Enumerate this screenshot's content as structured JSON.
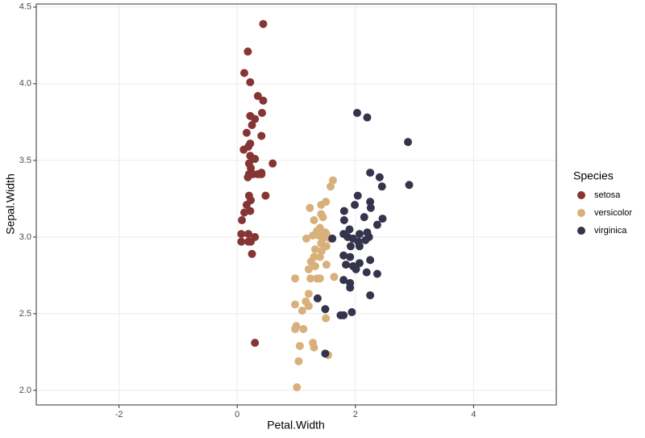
{
  "chart_data": {
    "type": "scatter",
    "x_label": "Petal.Width",
    "y_label": "Sepal.Width",
    "legend_title": "Species",
    "legend_position": "right",
    "grid": true,
    "xlim": [
      -3.4,
      5.4
    ],
    "ylim": [
      1.905,
      4.52
    ],
    "xticks": [
      -2,
      0,
      2,
      4
    ],
    "yticks": [
      {
        "value": 2,
        "label": "2.0"
      },
      {
        "value": 2.5,
        "label": "2.5"
      },
      {
        "value": 3,
        "label": "3.0"
      },
      {
        "value": 3.5,
        "label": "3.5"
      },
      {
        "value": 4,
        "label": "4.0"
      },
      {
        "value": 4.5,
        "label": "4.5"
      }
    ],
    "series": [
      {
        "name": "setosa",
        "color": "#853634",
        "x": [
          0.44,
          0.18,
          0.12,
          0.22,
          0.35,
          0.44,
          0.42,
          0.22,
          0.3,
          0.25,
          0.16,
          0.41,
          0.22,
          0.19,
          0.11,
          0.22,
          0.26,
          0.3,
          0.2,
          0.6,
          0.23,
          0.41,
          0.35,
          0.27,
          0.2,
          0.18,
          0.41,
          0.2,
          0.48,
          0.23,
          0.16,
          0.22,
          0.12,
          0.08,
          0.07,
          0.19,
          0.3,
          0.23,
          0.07,
          0.19,
          0.25,
          0.3
        ],
        "y": [
          4.39,
          4.21,
          4.07,
          4.01,
          3.92,
          3.89,
          3.81,
          3.79,
          3.77,
          3.73,
          3.68,
          3.66,
          3.61,
          3.59,
          3.57,
          3.53,
          3.51,
          3.51,
          3.48,
          3.48,
          3.45,
          3.42,
          3.41,
          3.41,
          3.41,
          3.39,
          3.41,
          3.27,
          3.27,
          3.24,
          3.21,
          3.17,
          3.16,
          3.11,
          3.02,
          3.02,
          3.0,
          2.97,
          2.97,
          2.97,
          2.89,
          2.31
        ]
      },
      {
        "name": "versicolor",
        "color": "#D8B07C",
        "x": [
          1.62,
          1.58,
          1.5,
          1.42,
          1.23,
          1.42,
          1.45,
          1.3,
          1.4,
          1.35,
          1.49,
          1.51,
          1.38,
          1.28,
          1.45,
          1.17,
          1.57,
          1.42,
          1.51,
          1.32,
          1.43,
          1.3,
          1.4,
          1.25,
          1.32,
          1.51,
          1.21,
          1.35,
          1.24,
          1.4,
          1.64,
          0.98,
          1.21,
          1.16,
          1.21,
          0.98,
          1.1,
          1.5,
          1.0,
          0.98,
          1.12,
          1.28,
          1.3,
          1.06,
          1.54,
          1.04,
          1.01
        ],
        "y": [
          3.37,
          3.33,
          3.23,
          3.21,
          3.19,
          3.15,
          3.13,
          3.11,
          3.06,
          3.04,
          3.03,
          3.02,
          3.01,
          3.01,
          2.99,
          2.99,
          2.99,
          2.96,
          2.94,
          2.92,
          2.91,
          2.87,
          2.87,
          2.84,
          2.81,
          2.82,
          2.79,
          2.73,
          2.73,
          2.73,
          2.74,
          2.73,
          2.63,
          2.58,
          2.55,
          2.56,
          2.52,
          2.47,
          2.42,
          2.4,
          2.4,
          2.31,
          2.28,
          2.29,
          2.23,
          2.19,
          2.02
        ]
      },
      {
        "name": "virginica",
        "color": "#35344D",
        "x": [
          2.03,
          2.2,
          2.89,
          2.25,
          2.41,
          2.45,
          2.91,
          2.04,
          2.25,
          2.26,
          1.99,
          1.81,
          2.46,
          2.15,
          1.81,
          2.37,
          1.9,
          2.2,
          1.8,
          2.07,
          1.87,
          2.23,
          1.61,
          1.96,
          2.17,
          2.05,
          1.92,
          2.07,
          1.8,
          1.91,
          2.25,
          2.07,
          1.84,
          1.96,
          2.01,
          2.19,
          2.37,
          1.8,
          1.91,
          1.91,
          1.36,
          2.25,
          1.49,
          1.94,
          1.75,
          1.8,
          1.49
        ],
        "y": [
          3.81,
          3.78,
          3.62,
          3.42,
          3.39,
          3.33,
          3.34,
          3.27,
          3.23,
          3.19,
          3.21,
          3.17,
          3.12,
          3.13,
          3.11,
          3.08,
          3.05,
          3.03,
          3.02,
          3.02,
          3.0,
          3.0,
          2.99,
          2.99,
          2.98,
          2.97,
          2.94,
          2.94,
          2.88,
          2.87,
          2.85,
          2.83,
          2.82,
          2.81,
          2.79,
          2.77,
          2.76,
          2.72,
          2.7,
          2.67,
          2.6,
          2.62,
          2.53,
          2.51,
          2.49,
          2.49,
          2.24
        ]
      }
    ]
  }
}
